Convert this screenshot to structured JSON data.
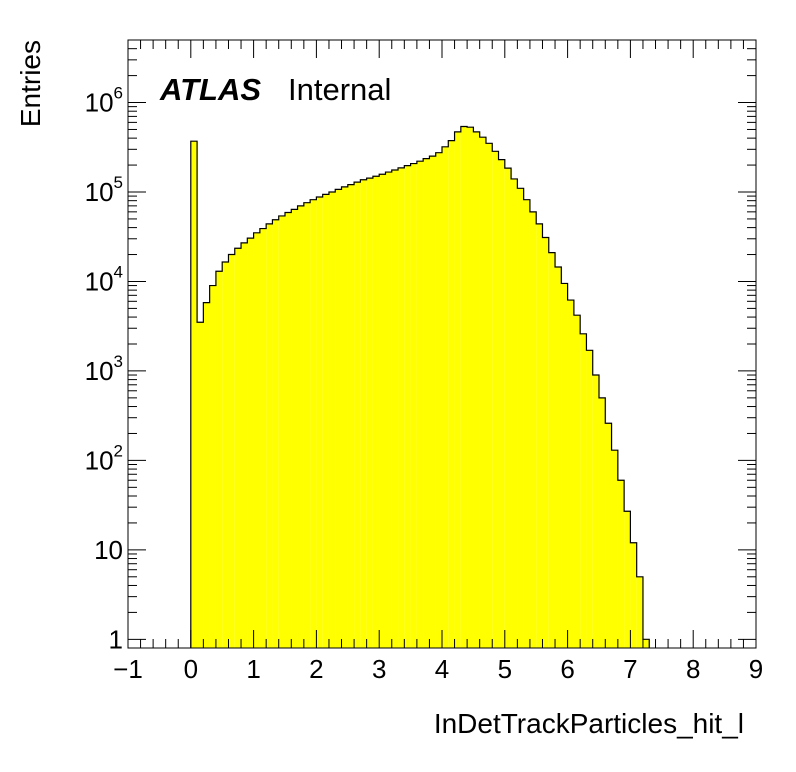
{
  "chart_data": {
    "type": "bar",
    "style": "histogram",
    "fill_color": "#ffff00",
    "edge_color": "#000000",
    "log_y": true,
    "xlabel": "InDetTrackParticles_hit_l",
    "ylabel": "Entries",
    "xlim": [
      -1,
      9
    ],
    "ylim": [
      0.8,
      5000000
    ],
    "bin_width": 0.1,
    "bin_start": 0.0,
    "x_ticks": [
      "−1",
      "0",
      "1",
      "2",
      "3",
      "4",
      "5",
      "6",
      "7",
      "8",
      "9"
    ],
    "y_ticks": [
      {
        "base": "10",
        "exp": "6"
      },
      {
        "base": "10",
        "exp": "5"
      },
      {
        "base": "10",
        "exp": "4"
      },
      {
        "base": "10",
        "exp": "3"
      },
      {
        "base": "10",
        "exp": "2"
      },
      {
        "base": "10",
        "exp": ""
      },
      {
        "base": "1",
        "exp": ""
      }
    ],
    "values": [
      370000,
      3500,
      5800,
      9000,
      13000,
      16500,
      20000,
      23500,
      27000,
      30500,
      35000,
      39000,
      44000,
      49000,
      54000,
      59000,
      64000,
      70000,
      76000,
      82000,
      88000,
      94000,
      100000,
      107000,
      114000,
      121000,
      129000,
      137000,
      143000,
      150000,
      158000,
      167000,
      176000,
      186000,
      197000,
      208000,
      221000,
      236000,
      252000,
      275000,
      320000,
      375000,
      470000,
      540000,
      530000,
      470000,
      410000,
      350000,
      285000,
      230000,
      185000,
      140000,
      110000,
      82000,
      60000,
      44000,
      31000,
      21000,
      14500,
      9500,
      6200,
      4200,
      2600,
      1700,
      900,
      500,
      260,
      130,
      60,
      27,
      12,
      5,
      1
    ]
  },
  "annotation": {
    "atlas": "ATLAS",
    "status": "Internal"
  }
}
